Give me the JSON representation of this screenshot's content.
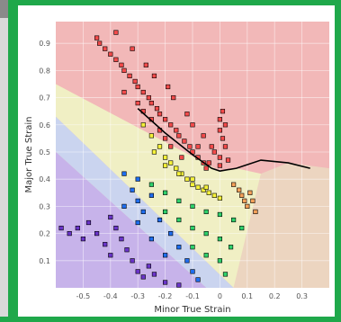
{
  "chart_data": {
    "type": "scatter",
    "title": "",
    "xlabel": "Minor True Strain",
    "ylabel": "Major True Strain",
    "xlim": [
      -0.6,
      0.4
    ],
    "ylim": [
      0.0,
      0.98
    ],
    "xticks": [
      -0.5,
      -0.4,
      -0.3,
      -0.2,
      -0.1,
      0,
      0.1,
      0.2,
      0.3
    ],
    "xtick_labels": [
      "-0.5",
      "-0.4",
      "-0.3",
      "-0.2",
      "-0.1",
      "0",
      "0.1",
      "0.2",
      "0.3"
    ],
    "yticks": [
      0.1,
      0.2,
      0.3,
      0.4,
      0.5,
      0.6,
      0.7,
      0.8,
      0.9
    ],
    "ytick_labels": [
      "0.1",
      "0.2",
      "0.3",
      "0.4",
      "0.5",
      "0.6",
      "0.7",
      "0.8",
      "0.9"
    ],
    "grid": true,
    "colors": {
      "fail_zone": "#f2b8b8",
      "marginal_zone": "#f0efc4",
      "safe_zone": "#cad4ef",
      "wrinkle_zone": "#c7b3ea",
      "thin_zone": "#ecd5c0",
      "fail_points": "#f24b4b",
      "marginal_points": "#f6f23a",
      "safe_points_green": "#2fd16b",
      "safe_points_blue": "#1f6ef0",
      "wrinkle_points": "#6a34c9",
      "thin_points": "#f4a15a",
      "flc_curve": "#000000"
    },
    "flc_curve": [
      [
        -0.3,
        0.66
      ],
      [
        -0.2,
        0.57
      ],
      [
        -0.1,
        0.49
      ],
      [
        -0.03,
        0.44
      ],
      [
        0.0,
        0.43
      ],
      [
        0.06,
        0.44
      ],
      [
        0.15,
        0.47
      ],
      [
        0.25,
        0.46
      ],
      [
        0.33,
        0.44
      ]
    ],
    "zones": [
      {
        "name": "wrinkle",
        "polygon": [
          [
            -0.6,
            0.0
          ],
          [
            -0.6,
            0.5
          ],
          [
            -0.05,
            0.0
          ]
        ]
      },
      {
        "name": "safe",
        "polygon": [
          [
            -0.6,
            0.5
          ],
          [
            -0.6,
            0.63
          ],
          [
            0.05,
            0.0
          ],
          [
            -0.05,
            0.0
          ]
        ]
      },
      {
        "name": "marginal",
        "polygon": [
          [
            -0.6,
            0.63
          ],
          [
            -0.6,
            0.75
          ],
          [
            0.0,
            0.43
          ],
          [
            0.06,
            0.44
          ],
          [
            0.15,
            0.42
          ],
          [
            0.05,
            0.0
          ]
        ]
      },
      {
        "name": "thin",
        "polygon": [
          [
            0.05,
            0.0
          ],
          [
            0.15,
            0.42
          ],
          [
            0.25,
            0.46
          ],
          [
            0.4,
            0.44
          ],
          [
            0.4,
            0.0
          ]
        ]
      }
    ],
    "series": [
      {
        "category": "fail",
        "points": [
          [
            -0.45,
            0.92
          ],
          [
            -0.44,
            0.9
          ],
          [
            -0.42,
            0.88
          ],
          [
            -0.4,
            0.86
          ],
          [
            -0.38,
            0.84
          ],
          [
            -0.36,
            0.82
          ],
          [
            -0.35,
            0.8
          ],
          [
            -0.33,
            0.78
          ],
          [
            -0.31,
            0.76
          ],
          [
            -0.3,
            0.74
          ],
          [
            -0.28,
            0.72
          ],
          [
            -0.26,
            0.7
          ],
          [
            -0.25,
            0.68
          ],
          [
            -0.23,
            0.66
          ],
          [
            -0.22,
            0.64
          ],
          [
            -0.2,
            0.62
          ],
          [
            -0.18,
            0.6
          ],
          [
            -0.16,
            0.58
          ],
          [
            -0.15,
            0.56
          ],
          [
            -0.13,
            0.54
          ],
          [
            -0.11,
            0.52
          ],
          [
            -0.1,
            0.5
          ],
          [
            -0.08,
            0.48
          ],
          [
            -0.06,
            0.46
          ],
          [
            -0.05,
            0.44
          ],
          [
            -0.35,
            0.72
          ],
          [
            -0.3,
            0.68
          ],
          [
            -0.28,
            0.65
          ],
          [
            -0.25,
            0.62
          ],
          [
            -0.22,
            0.58
          ],
          [
            -0.2,
            0.55
          ],
          [
            -0.18,
            0.52
          ],
          [
            0.0,
            0.62
          ],
          [
            0.0,
            0.58
          ],
          [
            0.01,
            0.55
          ],
          [
            0.02,
            0.52
          ],
          [
            -0.02,
            0.5
          ],
          [
            0.0,
            0.48
          ],
          [
            0.03,
            0.47
          ],
          [
            0.0,
            0.45
          ],
          [
            -0.04,
            0.46
          ],
          [
            -0.38,
            0.94
          ],
          [
            -0.32,
            0.88
          ],
          [
            -0.27,
            0.82
          ],
          [
            -0.24,
            0.78
          ],
          [
            -0.19,
            0.74
          ],
          [
            -0.17,
            0.7
          ],
          [
            -0.12,
            0.64
          ],
          [
            -0.1,
            0.6
          ],
          [
            -0.06,
            0.56
          ],
          [
            -0.03,
            0.52
          ],
          [
            0.01,
            0.65
          ],
          [
            0.02,
            0.6
          ],
          [
            -0.08,
            0.52
          ],
          [
            -0.14,
            0.48
          ]
        ]
      },
      {
        "category": "marginal",
        "points": [
          [
            -0.28,
            0.6
          ],
          [
            -0.25,
            0.56
          ],
          [
            -0.22,
            0.52
          ],
          [
            -0.2,
            0.48
          ],
          [
            -0.18,
            0.46
          ],
          [
            -0.16,
            0.44
          ],
          [
            -0.14,
            0.42
          ],
          [
            -0.12,
            0.4
          ],
          [
            -0.1,
            0.38
          ],
          [
            -0.08,
            0.37
          ],
          [
            -0.06,
            0.36
          ],
          [
            -0.04,
            0.35
          ],
          [
            -0.02,
            0.34
          ],
          [
            0.0,
            0.33
          ],
          [
            -0.24,
            0.5
          ],
          [
            -0.2,
            0.45
          ],
          [
            -0.15,
            0.42
          ],
          [
            -0.1,
            0.4
          ],
          [
            -0.05,
            0.37
          ]
        ]
      },
      {
        "category": "thin",
        "points": [
          [
            0.05,
            0.38
          ],
          [
            0.07,
            0.36
          ],
          [
            0.08,
            0.34
          ],
          [
            0.09,
            0.32
          ],
          [
            0.1,
            0.3
          ],
          [
            0.12,
            0.32
          ],
          [
            0.11,
            0.35
          ],
          [
            0.13,
            0.28
          ]
        ]
      },
      {
        "category": "safe_green",
        "points": [
          [
            -0.25,
            0.38
          ],
          [
            -0.2,
            0.35
          ],
          [
            -0.15,
            0.32
          ],
          [
            -0.1,
            0.3
          ],
          [
            -0.05,
            0.28
          ],
          [
            0.0,
            0.27
          ],
          [
            0.05,
            0.25
          ],
          [
            0.08,
            0.22
          ],
          [
            -0.2,
            0.28
          ],
          [
            -0.15,
            0.25
          ],
          [
            -0.1,
            0.22
          ],
          [
            -0.05,
            0.2
          ],
          [
            0.0,
            0.18
          ],
          [
            0.04,
            0.15
          ],
          [
            -0.1,
            0.15
          ],
          [
            -0.05,
            0.12
          ],
          [
            0.0,
            0.1
          ],
          [
            0.02,
            0.05
          ]
        ]
      },
      {
        "category": "safe_blue",
        "points": [
          [
            -0.35,
            0.42
          ],
          [
            -0.3,
            0.4
          ],
          [
            -0.25,
            0.34
          ],
          [
            -0.3,
            0.32
          ],
          [
            -0.35,
            0.3
          ],
          [
            -0.28,
            0.28
          ],
          [
            -0.22,
            0.25
          ],
          [
            -0.18,
            0.2
          ],
          [
            -0.15,
            0.15
          ],
          [
            -0.12,
            0.1
          ],
          [
            -0.1,
            0.06
          ],
          [
            -0.08,
            0.03
          ],
          [
            -0.2,
            0.12
          ],
          [
            -0.25,
            0.18
          ],
          [
            -0.3,
            0.24
          ],
          [
            -0.32,
            0.36
          ]
        ]
      },
      {
        "category": "wrinkle",
        "points": [
          [
            -0.58,
            0.22
          ],
          [
            -0.55,
            0.2
          ],
          [
            -0.52,
            0.22
          ],
          [
            -0.5,
            0.18
          ],
          [
            -0.48,
            0.24
          ],
          [
            -0.45,
            0.2
          ],
          [
            -0.4,
            0.26
          ],
          [
            -0.38,
            0.22
          ],
          [
            -0.36,
            0.18
          ],
          [
            -0.34,
            0.14
          ],
          [
            -0.32,
            0.1
          ],
          [
            -0.3,
            0.06
          ],
          [
            -0.28,
            0.04
          ],
          [
            -0.26,
            0.08
          ],
          [
            -0.24,
            0.05
          ],
          [
            -0.42,
            0.16
          ],
          [
            -0.4,
            0.12
          ],
          [
            -0.2,
            0.02
          ],
          [
            -0.15,
            0.01
          ]
        ]
      }
    ]
  }
}
